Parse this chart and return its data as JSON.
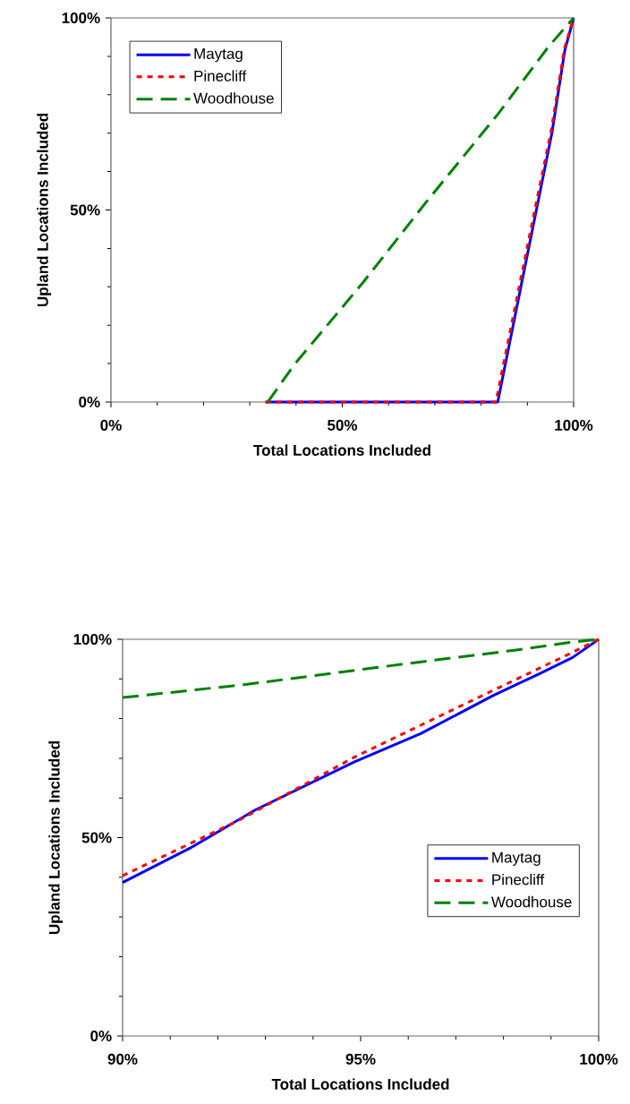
{
  "chart_data": [
    {
      "type": "line",
      "xlabel": "Total Locations Included",
      "ylabel": "Upland Locations Included",
      "legend": "top left",
      "xlim": [
        0,
        100
      ],
      "ylim": [
        0,
        100
      ],
      "xticks": [
        {
          "value": 0,
          "label": "0%"
        },
        {
          "value": 50,
          "label": "50%"
        },
        {
          "value": 100,
          "label": "100%"
        }
      ],
      "yticks": [
        {
          "value": 0,
          "label": "0%"
        },
        {
          "value": 50,
          "label": "50%"
        },
        {
          "value": 100,
          "label": "100%"
        }
      ],
      "series": [
        {
          "name": "Maytag",
          "color": "#0000ff",
          "line_style": "solid",
          "x": [
            33.4,
            83.6,
            84.5,
            88.1,
            91.7,
            95.3,
            98.1,
            100
          ],
          "values": [
            0,
            0,
            5.4,
            27,
            48.5,
            70,
            91.6,
            100
          ]
        },
        {
          "name": "Pinecliff",
          "color": "#ff0000",
          "line_style": "dotted",
          "x": [
            33.4,
            83.2,
            84.2,
            87.9,
            91.6,
            95.2,
            98,
            100
          ],
          "values": [
            0,
            0,
            6,
            28,
            50,
            71,
            92,
            100
          ]
        },
        {
          "name": "Woodhouse",
          "color": "#008000",
          "line_style": "dashed",
          "x": [
            33.9,
            39.6,
            54.6,
            68.1,
            83.8,
            94.5,
            100
          ],
          "values": [
            0,
            9.7,
            31.3,
            52,
            75.2,
            92.4,
            100
          ]
        }
      ]
    },
    {
      "type": "line",
      "xlabel": "Total Locations Included",
      "ylabel": "Upland Locations Included",
      "legend": "bottom right",
      "xlim": [
        90,
        100
      ],
      "ylim": [
        0,
        100
      ],
      "xticks": [
        {
          "value": 90,
          "label": "90%"
        },
        {
          "value": 95,
          "label": "95%"
        },
        {
          "value": 100,
          "label": "100%"
        }
      ],
      "yticks": [
        {
          "value": 0,
          "label": "0%"
        },
        {
          "value": 50,
          "label": "50%"
        },
        {
          "value": 100,
          "label": "100%"
        }
      ],
      "series": [
        {
          "name": "Maytag",
          "color": "#0000ff",
          "line_style": "solid",
          "x": [
            90,
            91.41,
            92.79,
            94.87,
            96.26,
            97.78,
            98.75,
            99.45,
            100
          ],
          "values": [
            38.7,
            47.3,
            57,
            69.1,
            76.2,
            85.8,
            91.3,
            95.4,
            100
          ]
        },
        {
          "name": "Pinecliff",
          "color": "#ff0000",
          "line_style": "dotted",
          "x": [
            90,
            92.45,
            94.87,
            97.71,
            99.38,
            100
          ],
          "values": [
            40.4,
            54.4,
            70.3,
            86.7,
            96.3,
            100
          ]
        },
        {
          "name": "Woodhouse",
          "color": "#008000",
          "line_style": "dashed",
          "x": [
            90,
            92.58,
            96.19,
            98.27,
            99.38,
            100
          ],
          "values": [
            85.3,
            88.6,
            94.2,
            97.3,
            99.2,
            100
          ]
        }
      ]
    }
  ]
}
